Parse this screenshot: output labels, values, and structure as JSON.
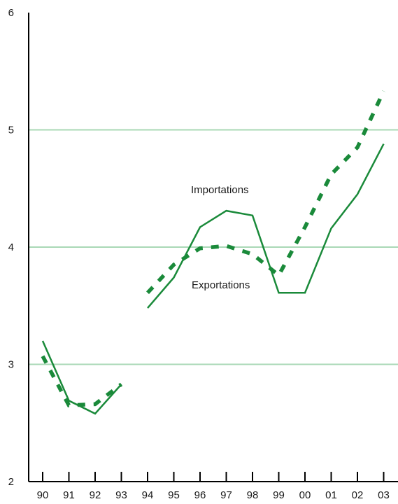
{
  "chart_data": {
    "type": "line",
    "categories": [
      "90",
      "91",
      "92",
      "93",
      "94",
      "95",
      "96",
      "97",
      "98",
      "99",
      "00",
      "01",
      "02",
      "03"
    ],
    "series": [
      {
        "key": "importations",
        "values": [
          3.2,
          2.69,
          2.58,
          2.83,
          3.48,
          3.74,
          4.17,
          4.31,
          4.27,
          3.61,
          3.61,
          4.16,
          4.45,
          4.88
        ],
        "style": "solid",
        "color": "#1a8a3a"
      },
      {
        "key": "exportations",
        "values": [
          3.07,
          2.65,
          2.66,
          2.83,
          3.61,
          3.85,
          3.99,
          4.01,
          3.94,
          3.76,
          4.17,
          4.62,
          4.85,
          5.33
        ],
        "style": "dashed",
        "color": "#1a8a3a"
      }
    ],
    "annotations": [
      {
        "text": "Importations",
        "series": "importations"
      },
      {
        "text": "Exportations",
        "series": "exportations"
      }
    ],
    "ylim": [
      2,
      6
    ],
    "yticks": [
      "2",
      "3",
      "4",
      "5",
      "6"
    ],
    "gridlines": [
      3,
      4,
      5
    ],
    "grid_color": "#a9d8b6",
    "gap_between": [
      "93",
      "94"
    ]
  }
}
